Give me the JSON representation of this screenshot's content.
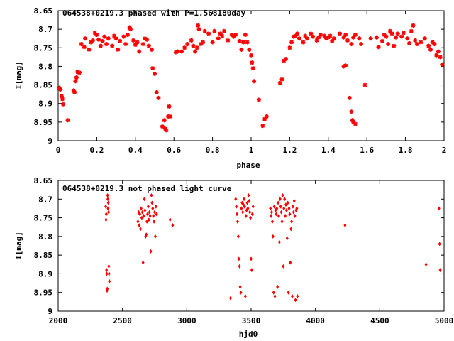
{
  "chart_data": [
    {
      "type": "scatter",
      "title": "064538+0219.3 phased with P=1.568180day",
      "xlabel": "phase",
      "ylabel": "I[mag]",
      "xlim": [
        0,
        2
      ],
      "ylim": [
        8.65,
        9.0
      ],
      "y_inverted": true,
      "grid": false,
      "marker_color": "#ff0000",
      "marker": "plus-star",
      "x_ticks": [
        "0",
        "0.2",
        "0.4",
        "0.6",
        "0.8",
        "1",
        "1.2",
        "1.4",
        "1.6",
        "1.8",
        "2"
      ],
      "y_ticks": [
        "8.65",
        "8.7",
        "8.75",
        "8.8",
        "8.85",
        "8.9",
        "8.95",
        "9"
      ],
      "points": [
        [
          0.005,
          8.858
        ],
        [
          0.012,
          8.862
        ],
        [
          0.018,
          8.88
        ],
        [
          0.022,
          8.888
        ],
        [
          0.026,
          8.902
        ],
        [
          0.05,
          8.945
        ],
        [
          0.08,
          8.865
        ],
        [
          0.085,
          8.87
        ],
        [
          0.09,
          8.84
        ],
        [
          0.095,
          8.83
        ],
        [
          0.1,
          8.815
        ],
        [
          0.11,
          8.817
        ],
        [
          0.12,
          8.74
        ],
        [
          0.135,
          8.748
        ],
        [
          0.14,
          8.725
        ],
        [
          0.16,
          8.755
        ],
        [
          0.17,
          8.735
        ],
        [
          0.18,
          8.73
        ],
        [
          0.19,
          8.71
        ],
        [
          0.2,
          8.715
        ],
        [
          0.21,
          8.728
        ],
        [
          0.22,
          8.745
        ],
        [
          0.23,
          8.732
        ],
        [
          0.24,
          8.72
        ],
        [
          0.25,
          8.74
        ],
        [
          0.26,
          8.725
        ],
        [
          0.28,
          8.745
        ],
        [
          0.29,
          8.718
        ],
        [
          0.3,
          8.725
        ],
        [
          0.31,
          8.755
        ],
        [
          0.32,
          8.732
        ],
        [
          0.34,
          8.72
        ],
        [
          0.35,
          8.74
        ],
        [
          0.36,
          8.715
        ],
        [
          0.37,
          8.695
        ],
        [
          0.375,
          8.7
        ],
        [
          0.39,
          8.73
        ],
        [
          0.4,
          8.742
        ],
        [
          0.41,
          8.735
        ],
        [
          0.42,
          8.76
        ],
        [
          0.44,
          8.74
        ],
        [
          0.45,
          8.725
        ],
        [
          0.46,
          8.728
        ],
        [
          0.47,
          8.745
        ],
        [
          0.485,
          8.755
        ],
        [
          0.49,
          8.805
        ],
        [
          0.5,
          8.82
        ],
        [
          0.51,
          8.87
        ],
        [
          0.52,
          8.885
        ],
        [
          0.54,
          8.962
        ],
        [
          0.55,
          8.945
        ],
        [
          0.555,
          8.968
        ],
        [
          0.56,
          8.972
        ],
        [
          0.57,
          8.935
        ],
        [
          0.575,
          8.908
        ],
        [
          0.58,
          8.935
        ],
        [
          0.61,
          8.762
        ],
        [
          0.62,
          8.76
        ],
        [
          0.64,
          8.76
        ],
        [
          0.655,
          8.75
        ],
        [
          0.67,
          8.74
        ],
        [
          0.69,
          8.73
        ],
        [
          0.7,
          8.745
        ],
        [
          0.71,
          8.76
        ],
        [
          0.72,
          8.75
        ],
        [
          0.725,
          8.69
        ],
        [
          0.73,
          8.7
        ],
        [
          0.74,
          8.74
        ],
        [
          0.75,
          8.735
        ],
        [
          0.76,
          8.705
        ],
        [
          0.78,
          8.712
        ],
        [
          0.8,
          8.735
        ],
        [
          0.81,
          8.705
        ],
        [
          0.83,
          8.725
        ],
        [
          0.84,
          8.712
        ],
        [
          0.85,
          8.718
        ],
        [
          0.86,
          8.705
        ],
        [
          0.88,
          8.73
        ],
        [
          0.9,
          8.715
        ],
        [
          0.91,
          8.72
        ],
        [
          0.92,
          8.715
        ],
        [
          0.94,
          8.732
        ],
        [
          0.95,
          8.755
        ],
        [
          0.96,
          8.735
        ],
        [
          0.97,
          8.715
        ],
        [
          0.98,
          8.735
        ],
        [
          0.99,
          8.755
        ],
        [
          1.0,
          8.77
        ],
        [
          1.005,
          8.79
        ],
        [
          1.01,
          8.805
        ],
        [
          1.015,
          8.84
        ],
        [
          1.04,
          8.89
        ],
        [
          1.06,
          8.96
        ],
        [
          1.07,
          8.942
        ],
        [
          1.08,
          8.935
        ],
        [
          1.15,
          8.845
        ],
        [
          1.16,
          8.835
        ],
        [
          1.17,
          8.785
        ],
        [
          1.18,
          8.78
        ],
        [
          1.2,
          8.75
        ],
        [
          1.21,
          8.735
        ],
        [
          1.22,
          8.72
        ],
        [
          1.23,
          8.718
        ],
        [
          1.24,
          8.712
        ],
        [
          1.25,
          8.725
        ],
        [
          1.27,
          8.735
        ],
        [
          1.28,
          8.718
        ],
        [
          1.29,
          8.725
        ],
        [
          1.31,
          8.712
        ],
        [
          1.32,
          8.72
        ],
        [
          1.34,
          8.73
        ],
        [
          1.35,
          8.722
        ],
        [
          1.36,
          8.715
        ],
        [
          1.38,
          8.718
        ],
        [
          1.39,
          8.725
        ],
        [
          1.4,
          8.722
        ],
        [
          1.41,
          8.718
        ],
        [
          1.42,
          8.732
        ],
        [
          1.43,
          8.725
        ],
        [
          1.46,
          8.712
        ],
        [
          1.48,
          8.722
        ],
        [
          1.49,
          8.715
        ],
        [
          1.5,
          8.73
        ],
        [
          1.52,
          8.74
        ],
        [
          1.53,
          8.722
        ],
        [
          1.54,
          8.715
        ],
        [
          1.56,
          8.725
        ],
        [
          1.57,
          8.74
        ],
        [
          1.48,
          8.8
        ],
        [
          1.49,
          8.798
        ],
        [
          1.51,
          8.885
        ],
        [
          1.52,
          8.922
        ],
        [
          1.525,
          8.945
        ],
        [
          1.53,
          8.95
        ],
        [
          1.54,
          8.955
        ],
        [
          1.59,
          8.85
        ],
        [
          1.62,
          8.725
        ],
        [
          1.65,
          8.722
        ],
        [
          1.66,
          8.748
        ],
        [
          1.68,
          8.732
        ],
        [
          1.69,
          8.715
        ],
        [
          1.7,
          8.72
        ],
        [
          1.71,
          8.74
        ],
        [
          1.72,
          8.705
        ],
        [
          1.73,
          8.712
        ],
        [
          1.74,
          8.745
        ],
        [
          1.75,
          8.722
        ],
        [
          1.76,
          8.712
        ],
        [
          1.78,
          8.72
        ],
        [
          1.79,
          8.71
        ],
        [
          1.81,
          8.725
        ],
        [
          1.82,
          8.738
        ],
        [
          1.83,
          8.705
        ],
        [
          1.84,
          8.69
        ],
        [
          1.85,
          8.73
        ],
        [
          1.86,
          8.74
        ],
        [
          1.88,
          8.735
        ],
        [
          1.9,
          8.725
        ],
        [
          1.92,
          8.745
        ],
        [
          1.93,
          8.755
        ],
        [
          1.94,
          8.735
        ],
        [
          1.95,
          8.74
        ],
        [
          1.96,
          8.77
        ],
        [
          1.97,
          8.76
        ],
        [
          1.98,
          8.775
        ],
        [
          1.99,
          8.795
        ]
      ]
    },
    {
      "type": "scatter",
      "title": "064538+0219.3 not phased light curve",
      "xlabel": "hjd0",
      "ylabel": "I[mag]",
      "xlim": [
        2000,
        5000
      ],
      "ylim": [
        8.65,
        9.0
      ],
      "y_inverted": true,
      "grid": false,
      "marker_color": "#ff0000",
      "marker": "diamond",
      "x_ticks": [
        "2000",
        "2500",
        "3000",
        "3500",
        "4000",
        "4500",
        "5000"
      ],
      "y_ticks": [
        "8.65",
        "8.7",
        "8.75",
        "8.8",
        "8.85",
        "8.9",
        "8.95",
        "9"
      ],
      "points": [
        [
          2370,
          8.72
        ],
        [
          2372,
          8.755
        ],
        [
          2374,
          8.74
        ],
        [
          2376,
          8.89
        ],
        [
          2378,
          8.9
        ],
        [
          2380,
          8.945
        ],
        [
          2382,
          8.94
        ],
        [
          2384,
          8.69
        ],
        [
          2386,
          8.7
        ],
        [
          2388,
          8.725
        ],
        [
          2390,
          8.71
        ],
        [
          2392,
          8.735
        ],
        [
          2394,
          8.88
        ],
        [
          2396,
          8.9
        ],
        [
          2398,
          8.92
        ],
        [
          2620,
          8.76
        ],
        [
          2625,
          8.735
        ],
        [
          2630,
          8.77
        ],
        [
          2635,
          8.74
        ],
        [
          2640,
          8.78
        ],
        [
          2645,
          8.725
        ],
        [
          2650,
          8.75
        ],
        [
          2655,
          8.735
        ],
        [
          2660,
          8.87
        ],
        [
          2665,
          8.745
        ],
        [
          2670,
          8.7
        ],
        [
          2675,
          8.73
        ],
        [
          2680,
          8.8
        ],
        [
          2685,
          8.795
        ],
        [
          2690,
          8.76
        ],
        [
          2695,
          8.74
        ],
        [
          2700,
          8.72
        ],
        [
          2705,
          8.755
        ],
        [
          2710,
          8.735
        ],
        [
          2715,
          8.745
        ],
        [
          2720,
          8.84
        ],
        [
          2725,
          8.69
        ],
        [
          2730,
          8.71
        ],
        [
          2735,
          8.725
        ],
        [
          2740,
          8.745
        ],
        [
          2745,
          8.76
        ],
        [
          2750,
          8.735
        ],
        [
          2755,
          8.8
        ],
        [
          2760,
          8.72
        ],
        [
          2765,
          8.74
        ],
        [
          2870,
          8.755
        ],
        [
          2890,
          8.77
        ],
        [
          3340,
          8.965
        ],
        [
          3380,
          8.7
        ],
        [
          3385,
          8.72
        ],
        [
          3390,
          8.74
        ],
        [
          3395,
          8.76
        ],
        [
          3400,
          8.8
        ],
        [
          3405,
          8.86
        ],
        [
          3410,
          8.88
        ],
        [
          3415,
          8.935
        ],
        [
          3420,
          8.95
        ],
        [
          3425,
          8.725
        ],
        [
          3430,
          8.71
        ],
        [
          3435,
          8.735
        ],
        [
          3440,
          8.715
        ],
        [
          3445,
          8.7
        ],
        [
          3450,
          8.72
        ],
        [
          3455,
          8.96
        ],
        [
          3460,
          8.745
        ],
        [
          3465,
          8.73
        ],
        [
          3470,
          8.71
        ],
        [
          3475,
          8.725
        ],
        [
          3480,
          8.69
        ],
        [
          3485,
          8.705
        ],
        [
          3490,
          8.735
        ],
        [
          3495,
          8.75
        ],
        [
          3500,
          8.86
        ],
        [
          3505,
          8.89
        ],
        [
          3510,
          8.74
        ],
        [
          3515,
          8.72
        ],
        [
          3650,
          8.725
        ],
        [
          3655,
          8.745
        ],
        [
          3660,
          8.735
        ],
        [
          3665,
          8.76
        ],
        [
          3670,
          8.8
        ],
        [
          3675,
          8.95
        ],
        [
          3680,
          8.72
        ],
        [
          3685,
          8.96
        ],
        [
          3690,
          8.73
        ],
        [
          3695,
          8.74
        ],
        [
          3700,
          8.725
        ],
        [
          3705,
          8.935
        ],
        [
          3710,
          8.71
        ],
        [
          3715,
          8.745
        ],
        [
          3720,
          8.815
        ],
        [
          3725,
          8.7
        ],
        [
          3730,
          8.72
        ],
        [
          3735,
          8.735
        ],
        [
          3740,
          8.76
        ],
        [
          3745,
          8.69
        ],
        [
          3750,
          8.88
        ],
        [
          3755,
          8.725
        ],
        [
          3760,
          8.7
        ],
        [
          3765,
          8.745
        ],
        [
          3770,
          8.715
        ],
        [
          3775,
          8.73
        ],
        [
          3780,
          8.805
        ],
        [
          3785,
          8.71
        ],
        [
          3790,
          8.95
        ],
        [
          3795,
          8.725
        ],
        [
          3800,
          8.74
        ],
        [
          3805,
          8.87
        ],
        [
          3810,
          8.78
        ],
        [
          3815,
          8.76
        ],
        [
          3820,
          8.96
        ],
        [
          3825,
          8.72
        ],
        [
          3830,
          8.735
        ],
        [
          3835,
          8.705
        ],
        [
          3840,
          8.745
        ],
        [
          3845,
          8.97
        ],
        [
          3850,
          8.73
        ],
        [
          3855,
          8.725
        ],
        [
          3860,
          8.96
        ],
        [
          4230,
          8.77
        ],
        [
          4860,
          8.875
        ],
        [
          4960,
          8.725
        ],
        [
          4965,
          8.82
        ],
        [
          4970,
          8.89
        ]
      ]
    }
  ]
}
